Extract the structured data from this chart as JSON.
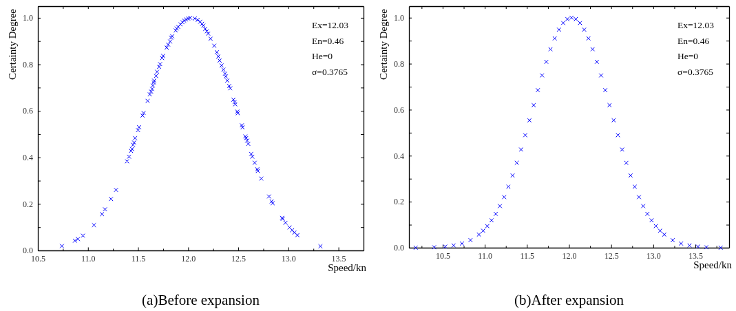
{
  "chart_data": [
    {
      "type": "scatter",
      "title": "(a)Before expansion",
      "xlabel": "Speed/kn",
      "ylabel": "Certainty Degree",
      "annotations": [
        "Ex=12.03",
        "En=0.46",
        "He=0",
        "σ=0.3765"
      ],
      "marker": "cross",
      "grid": false,
      "xlim": [
        10.5,
        13.75
      ],
      "ylim": [
        0,
        1.05
      ],
      "xticks": [
        {
          "value": 10.5,
          "label": "10.5"
        },
        {
          "value": 10.75,
          "label": null
        },
        {
          "value": 11,
          "label": "11.0"
        },
        {
          "value": 11.25,
          "label": null
        },
        {
          "value": 11.5,
          "label": "11.5"
        },
        {
          "value": 11.75,
          "label": null
        },
        {
          "value": 12,
          "label": "12.0"
        },
        {
          "value": 12.25,
          "label": null
        },
        {
          "value": 12.5,
          "label": "12.5"
        },
        {
          "value": 12.75,
          "label": null
        },
        {
          "value": 13,
          "label": "13.0"
        },
        {
          "value": 13.25,
          "label": null
        },
        {
          "value": 13.5,
          "label": "13.5"
        }
      ],
      "yticks": [
        {
          "value": 0,
          "label": "0.0"
        },
        {
          "value": 0.1,
          "label": null
        },
        {
          "value": 0.2,
          "label": "0.2"
        },
        {
          "value": 0.3,
          "label": null
        },
        {
          "value": 0.4,
          "label": "0.4"
        },
        {
          "value": 0.5,
          "label": null
        },
        {
          "value": 0.6,
          "label": "0.6"
        },
        {
          "value": 0.7,
          "label": null
        },
        {
          "value": 0.8,
          "label": "0.8"
        },
        {
          "value": 0.9,
          "label": null
        },
        {
          "value": 1,
          "label": "1.0"
        }
      ],
      "series": [
        {
          "color": "#0000ff",
          "x": [
            10.74,
            10.87,
            10.9,
            10.95,
            11.06,
            11.14,
            11.17,
            11.23,
            11.28,
            11.39,
            11.41,
            11.43,
            11.44,
            11.45,
            11.46,
            11.47,
            11.5,
            11.51,
            11.545,
            11.555,
            11.595,
            11.617,
            11.63,
            11.64,
            11.648,
            11.657,
            11.66,
            11.68,
            11.69,
            11.71,
            11.72,
            11.74,
            11.75,
            11.786,
            11.8,
            11.82,
            11.83,
            11.84,
            11.876,
            11.886,
            11.9,
            11.924,
            11.943,
            11.96,
            11.98,
            12.0,
            12.02,
            12.067,
            12.095,
            12.12,
            12.138,
            12.152,
            12.17,
            12.186,
            12.2,
            12.224,
            12.26,
            12.286,
            12.3,
            12.314,
            12.333,
            12.352,
            12.367,
            12.376,
            12.39,
            12.41,
            12.42,
            12.452,
            12.464,
            12.469,
            12.49,
            12.495,
            12.536,
            12.543,
            12.57,
            12.579,
            12.588,
            12.6,
            12.629,
            12.64,
            12.664,
            12.69,
            12.695,
            12.729,
            12.807,
            12.833,
            12.843,
            12.938,
            12.943,
            12.971,
            13.012,
            13.038,
            13.06,
            13.09,
            13.32
          ],
          "values": [
            0.019,
            0.042,
            0.049,
            0.064,
            0.109,
            0.156,
            0.177,
            0.221,
            0.26,
            0.383,
            0.403,
            0.428,
            0.436,
            0.454,
            0.464,
            0.483,
            0.517,
            0.53,
            0.58,
            0.591,
            0.643,
            0.671,
            0.683,
            0.694,
            0.709,
            0.722,
            0.73,
            0.75,
            0.768,
            0.789,
            0.801,
            0.827,
            0.836,
            0.872,
            0.885,
            0.898,
            0.915,
            0.921,
            0.946,
            0.954,
            0.961,
            0.972,
            0.981,
            0.988,
            0.993,
            0.997,
            1.0,
            0.997,
            0.991,
            0.983,
            0.974,
            0.966,
            0.952,
            0.942,
            0.932,
            0.91,
            0.88,
            0.852,
            0.834,
            0.816,
            0.795,
            0.777,
            0.76,
            0.748,
            0.73,
            0.707,
            0.697,
            0.648,
            0.638,
            0.628,
            0.597,
            0.59,
            0.538,
            0.529,
            0.49,
            0.483,
            0.472,
            0.458,
            0.415,
            0.403,
            0.377,
            0.349,
            0.342,
            0.309,
            0.232,
            0.211,
            0.203,
            0.14,
            0.136,
            0.119,
            0.099,
            0.087,
            0.077,
            0.066,
            0.018
          ]
        }
      ]
    },
    {
      "type": "scatter",
      "title": "(b)After expansion",
      "xlabel": "Speed/kn",
      "ylabel": "Certainty Degree",
      "annotations": [
        "Ex=12.03",
        "En=0.46",
        "He=0",
        "σ=0.3765"
      ],
      "marker": "cross",
      "grid": false,
      "xlim": [
        10.1,
        13.9
      ],
      "ylim": [
        0,
        1.05
      ],
      "xticks": [
        {
          "value": 10.25,
          "label": null
        },
        {
          "value": 10.5,
          "label": "10.5"
        },
        {
          "value": 10.75,
          "label": null
        },
        {
          "value": 11,
          "label": "11.0"
        },
        {
          "value": 11.25,
          "label": null
        },
        {
          "value": 11.5,
          "label": "11.5"
        },
        {
          "value": 11.75,
          "label": null
        },
        {
          "value": 12,
          "label": "12.0"
        },
        {
          "value": 12.25,
          "label": null
        },
        {
          "value": 12.5,
          "label": "12.5"
        },
        {
          "value": 12.75,
          "label": null
        },
        {
          "value": 13,
          "label": "13.0"
        },
        {
          "value": 13.25,
          "label": null
        },
        {
          "value": 13.5,
          "label": "13.5"
        },
        {
          "value": 13.75,
          "label": null
        }
      ],
      "yticks": [
        {
          "value": 0,
          "label": "0.0"
        },
        {
          "value": 0.1,
          "label": null
        },
        {
          "value": 0.2,
          "label": "0.2"
        },
        {
          "value": 0.3,
          "label": null
        },
        {
          "value": 0.4,
          "label": "0.4"
        },
        {
          "value": 0.5,
          "label": null
        },
        {
          "value": 0.6,
          "label": "0.6"
        },
        {
          "value": 0.7,
          "label": null
        },
        {
          "value": 0.8,
          "label": "0.8"
        },
        {
          "value": 0.9,
          "label": null
        },
        {
          "value": 1,
          "label": "1.0"
        }
      ],
      "series": [
        {
          "color": "#0000ff",
          "x": [
            10.18,
            10.4,
            10.53,
            10.63,
            10.73,
            10.83,
            10.93,
            10.98,
            11.03,
            11.08,
            11.13,
            11.18,
            11.23,
            11.28,
            11.33,
            11.38,
            11.43,
            11.48,
            11.53,
            11.58,
            11.63,
            11.68,
            11.73,
            11.78,
            11.83,
            11.88,
            11.93,
            11.98,
            12.03,
            12.08,
            12.13,
            12.18,
            12.23,
            12.28,
            12.33,
            12.38,
            12.43,
            12.48,
            12.53,
            12.58,
            12.63,
            12.68,
            12.73,
            12.78,
            12.83,
            12.88,
            12.93,
            12.98,
            13.03,
            13.08,
            13.13,
            13.23,
            13.33,
            13.43,
            13.53,
            13.63,
            13.8
          ],
          "values": [
            0,
            0.002,
            0.005,
            0.01,
            0.018,
            0.033,
            0.057,
            0.074,
            0.094,
            0.119,
            0.147,
            0.181,
            0.22,
            0.265,
            0.314,
            0.369,
            0.427,
            0.489,
            0.554,
            0.62,
            0.685,
            0.749,
            0.808,
            0.863,
            0.91,
            0.948,
            0.977,
            0.994,
            1,
            0.994,
            0.977,
            0.948,
            0.91,
            0.863,
            0.808,
            0.749,
            0.685,
            0.62,
            0.554,
            0.489,
            0.427,
            0.369,
            0.314,
            0.265,
            0.22,
            0.181,
            0.147,
            0.119,
            0.094,
            0.074,
            0.057,
            0.033,
            0.018,
            0.01,
            0.005,
            0.002,
            0
          ]
        }
      ]
    }
  ]
}
